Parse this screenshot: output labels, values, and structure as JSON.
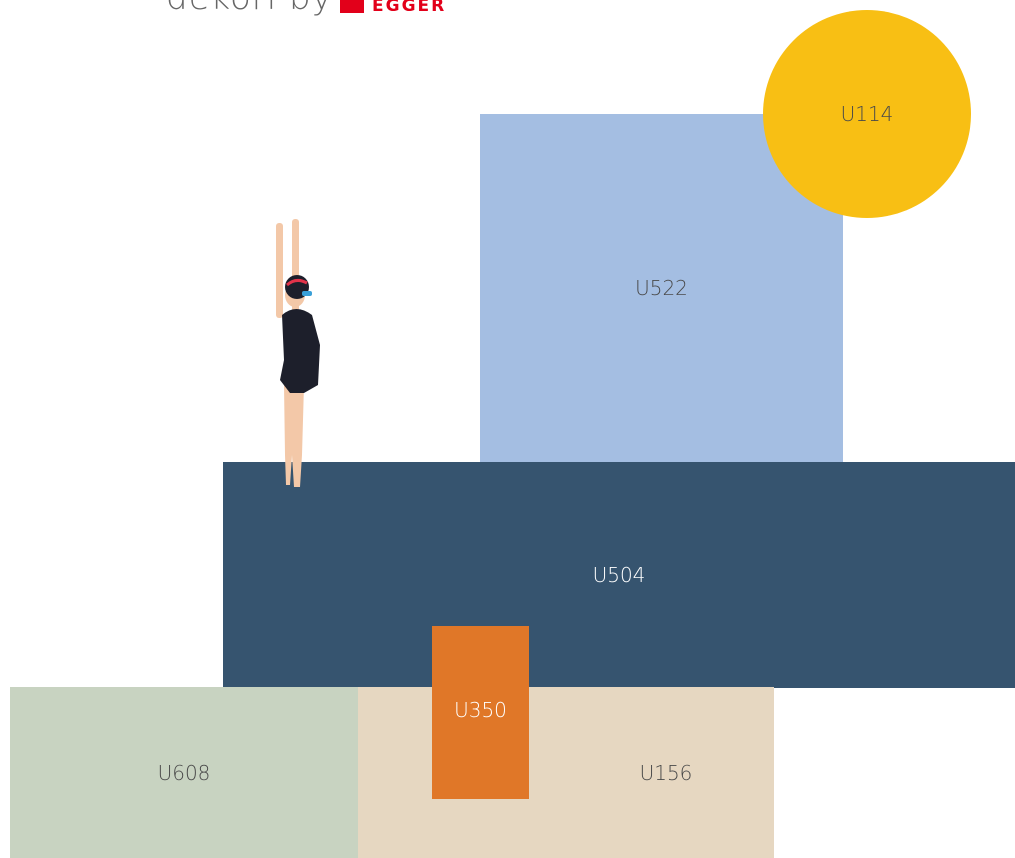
{
  "header": {
    "brand_prefix": "dekori by",
    "brand": "EGGER"
  },
  "swatches": [
    {
      "label": "U114"
    },
    {
      "label": "U522"
    },
    {
      "label": "U504"
    },
    {
      "label": "U350"
    },
    {
      "label": "U608"
    },
    {
      "label": "U156"
    }
  ]
}
